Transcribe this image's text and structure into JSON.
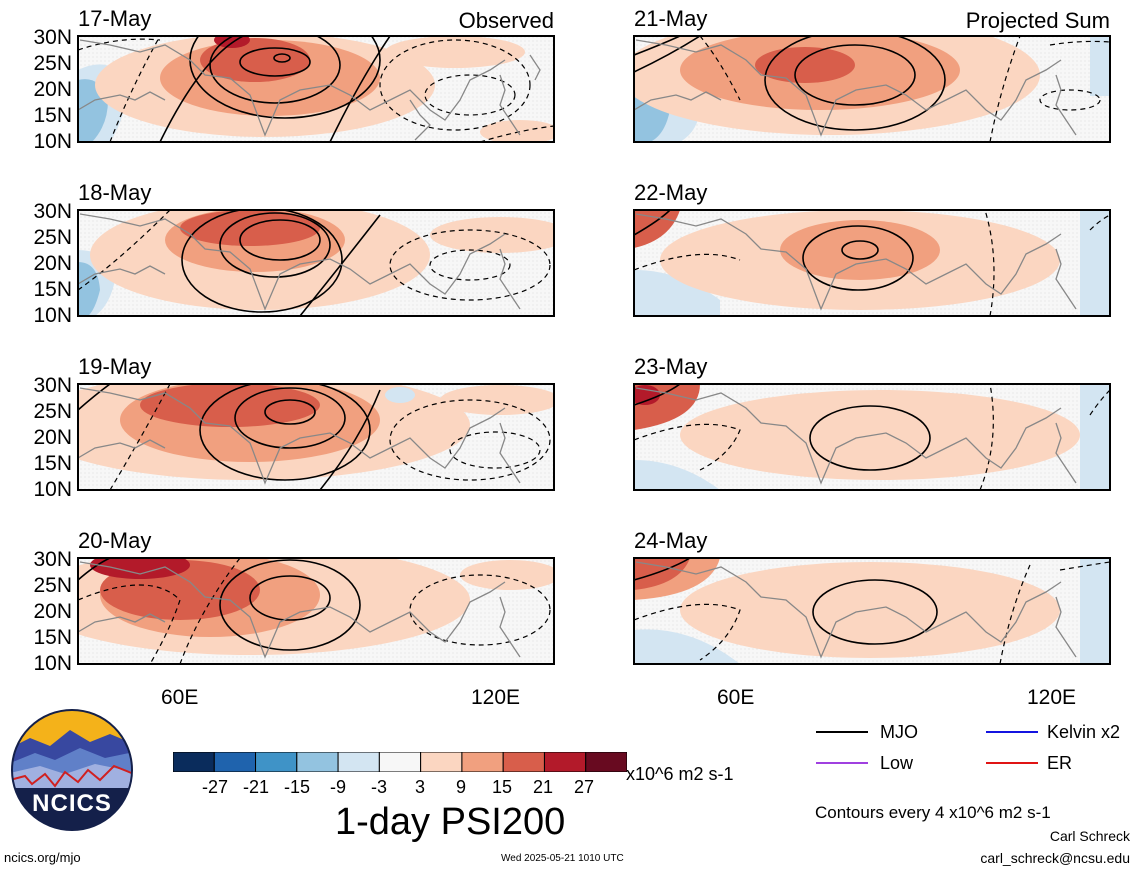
{
  "panels": [
    {
      "date": "17-May",
      "subtitle": "Observed"
    },
    {
      "date": "21-May",
      "subtitle": "Projected Sum"
    },
    {
      "date": "18-May",
      "subtitle": ""
    },
    {
      "date": "22-May",
      "subtitle": ""
    },
    {
      "date": "19-May",
      "subtitle": ""
    },
    {
      "date": "23-May",
      "subtitle": ""
    },
    {
      "date": "20-May",
      "subtitle": ""
    },
    {
      "date": "24-May",
      "subtitle": ""
    }
  ],
  "lat_labels": [
    "30N",
    "25N",
    "20N",
    "15N",
    "10N"
  ],
  "lon_labels": [
    "60E",
    "120E"
  ],
  "colorbar": {
    "colors": [
      "#0a2c5c",
      "#1f63ad",
      "#3f93c7",
      "#93c3e0",
      "#d3e5f2",
      "#f7f7f7",
      "#fbd6c1",
      "#f1a07f",
      "#d85e4b",
      "#b31a2a",
      "#680a20"
    ],
    "ticks": [
      "-27",
      "-21",
      "-15",
      "-9",
      "-3",
      "3",
      "9",
      "15",
      "21",
      "27"
    ],
    "units": "x10^6 m2 s-1",
    "title": "1-day PSI200"
  },
  "legend": [
    {
      "label": "MJO",
      "color": "#000000"
    },
    {
      "label": "Kelvin x2",
      "color": "#1414e0"
    },
    {
      "label": "Low",
      "color": "#a040e0"
    },
    {
      "label": "ER",
      "color": "#e01414"
    }
  ],
  "contour_note": "Contours every 4 x10^6 m2 s-1",
  "logo_text": "NCICS",
  "footer": {
    "url": "ncics.org/mjo",
    "timestamp": "Wed 2025-05-21 1010 UTC",
    "author": "Carl Schreck",
    "email": "carl_schreck@ncsu.edu"
  }
}
